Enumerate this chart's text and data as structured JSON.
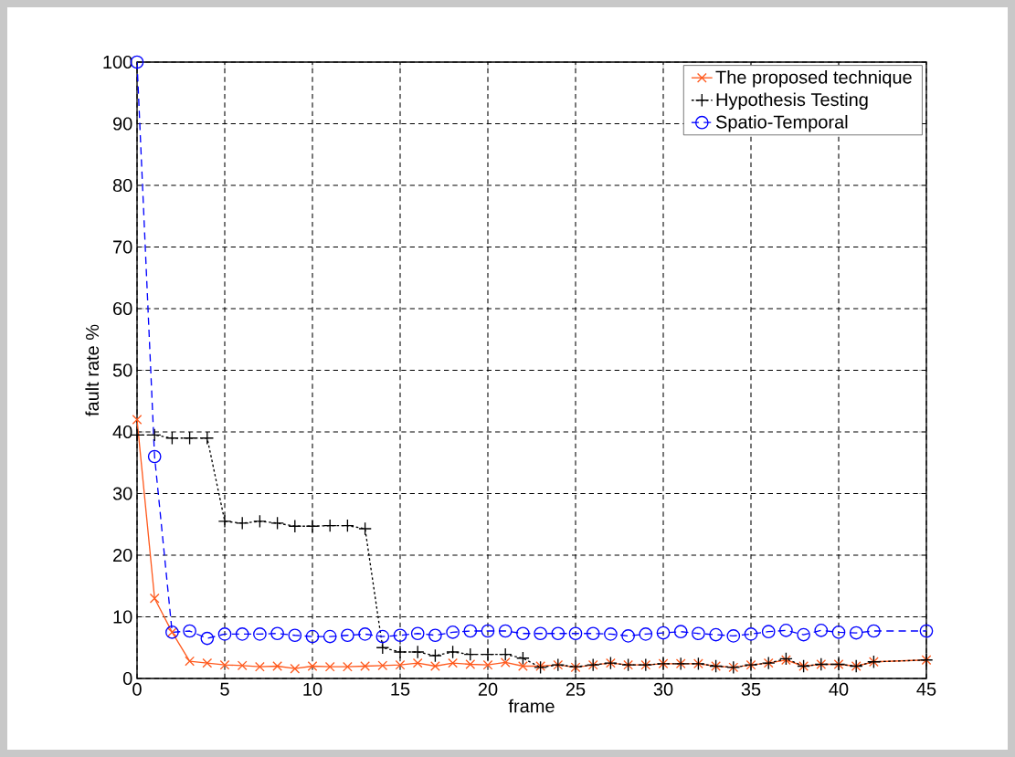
{
  "chart_data": {
    "type": "line",
    "xlabel": "frame",
    "ylabel": "fault rate %",
    "xlim": [
      0,
      45
    ],
    "ylim": [
      0,
      100
    ],
    "xticks": [
      0,
      5,
      10,
      15,
      20,
      25,
      30,
      35,
      40,
      45
    ],
    "yticks": [
      0,
      10,
      20,
      30,
      40,
      50,
      60,
      70,
      80,
      90,
      100
    ],
    "grid": true,
    "legend": "top right",
    "series": [
      {
        "name": "The proposed technique",
        "color": "#ff5a1e",
        "marker": "cross",
        "line_style": "solid",
        "x": [
          0,
          1,
          2,
          3,
          4,
          5,
          6,
          7,
          8,
          9,
          10,
          11,
          12,
          13,
          14,
          15,
          16,
          17,
          18,
          19,
          20,
          21,
          22,
          23,
          24,
          25,
          26,
          27,
          28,
          29,
          30,
          31,
          32,
          33,
          34,
          35,
          36,
          37,
          38,
          39,
          40,
          41,
          42,
          45
        ],
        "values": [
          42,
          13,
          7.5,
          2.8,
          2.5,
          2.2,
          2.1,
          1.9,
          2,
          1.6,
          2,
          1.9,
          1.9,
          2,
          2.1,
          2.2,
          2.5,
          2,
          2.5,
          2.3,
          2.2,
          2.6,
          2,
          2,
          2.2,
          1.8,
          2.2,
          2.5,
          2.2,
          2.2,
          2.4,
          2.4,
          2.4,
          2,
          1.8,
          2.2,
          2.5,
          3,
          2,
          2.3,
          2.3,
          2,
          2.7,
          3
        ]
      },
      {
        "name": "Hypothesis Testing",
        "color": "#000000",
        "marker": "cross",
        "line_style": "dotted",
        "x": [
          0,
          1,
          2,
          3,
          4,
          5,
          6,
          7,
          8,
          9,
          10,
          11,
          12,
          13,
          14,
          15,
          16,
          17,
          18,
          19,
          20,
          21,
          22,
          23,
          24,
          25,
          26,
          27,
          28,
          29,
          30,
          31,
          32,
          33,
          34,
          35,
          36,
          37,
          38,
          39,
          40,
          41,
          42,
          45
        ],
        "values": [
          39.5,
          39.5,
          39,
          39,
          39,
          25.5,
          25.2,
          25.5,
          25.2,
          24.7,
          24.7,
          24.8,
          24.8,
          24.3,
          5,
          4.3,
          4.3,
          3.7,
          4.3,
          3.9,
          3.9,
          3.9,
          3.3,
          1.8,
          2.2,
          1.9,
          2.2,
          2.5,
          2.2,
          2.2,
          2.4,
          2.4,
          2.4,
          2,
          1.8,
          2.2,
          2.5,
          3.2,
          2,
          2.3,
          2.3,
          2,
          2.7,
          3
        ]
      },
      {
        "name": "Spatio-Temporal",
        "color": "#0000ff",
        "marker": "circle",
        "line_style": "dashed",
        "x": [
          0,
          1,
          2,
          3,
          4,
          5,
          6,
          7,
          8,
          9,
          10,
          11,
          12,
          13,
          14,
          15,
          16,
          17,
          18,
          19,
          20,
          21,
          22,
          23,
          24,
          25,
          26,
          27,
          28,
          29,
          30,
          31,
          32,
          33,
          34,
          35,
          36,
          37,
          38,
          39,
          40,
          41,
          42,
          45
        ],
        "values": [
          100,
          36,
          7.5,
          7.7,
          6.5,
          7.2,
          7.2,
          7.2,
          7.3,
          7,
          6.8,
          6.8,
          7,
          7.2,
          6.8,
          7,
          7.3,
          7,
          7.5,
          7.7,
          7.7,
          7.7,
          7.3,
          7.3,
          7.3,
          7.3,
          7.3,
          7.2,
          6.9,
          7.2,
          7.4,
          7.6,
          7.3,
          7.1,
          6.9,
          7.2,
          7.6,
          7.8,
          7.1,
          7.8,
          7.5,
          7.4,
          7.7,
          7.7
        ]
      }
    ]
  }
}
